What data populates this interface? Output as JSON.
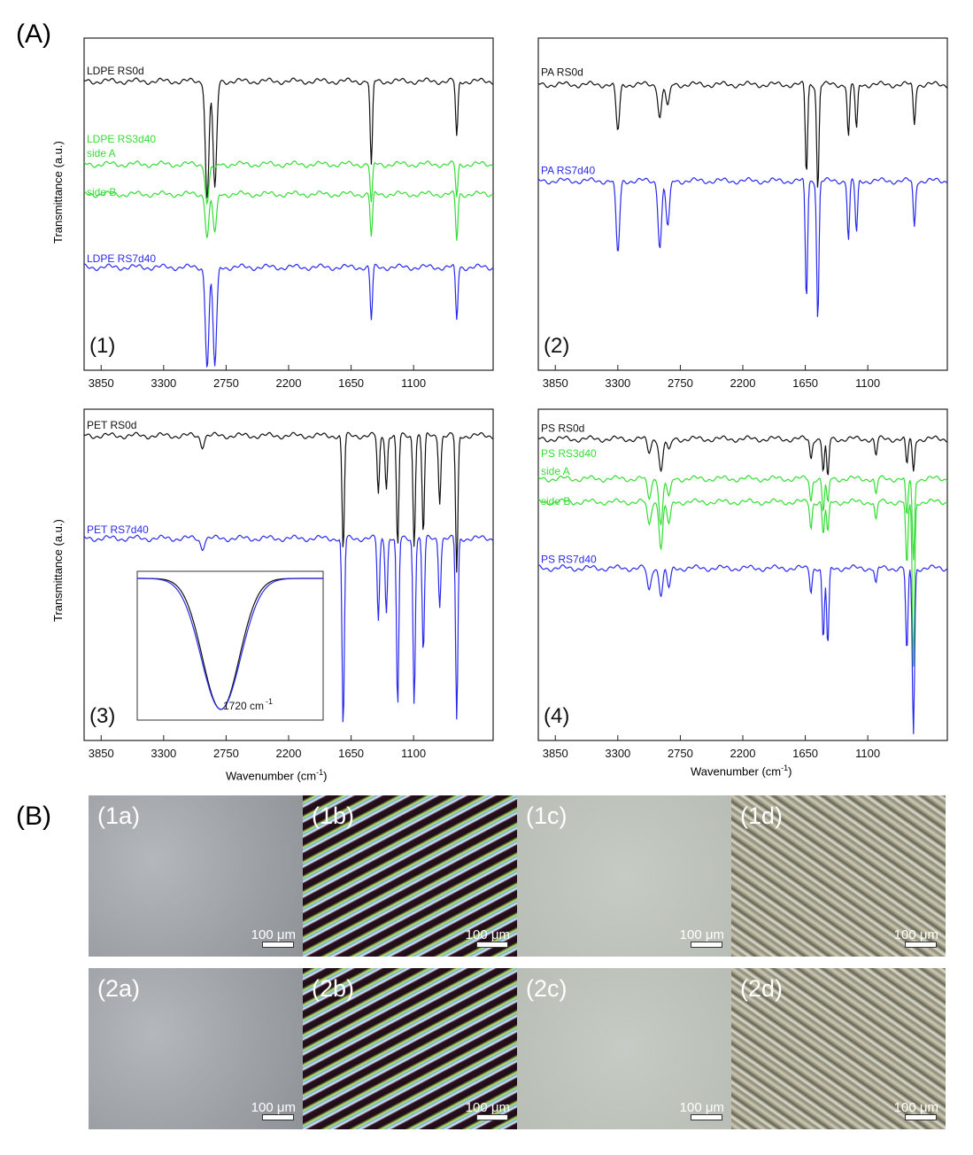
{
  "labels": {
    "section_a": "(A)",
    "section_b": "(B)"
  },
  "axes": {
    "y_title": "Transmittance (a.u.)",
    "x_title": "Wavenumber (cm",
    "x_title_sup": "-1",
    "x_title_end": ")"
  },
  "colors": {
    "black": "#111111",
    "green": "#33dd33",
    "blue": "#2a2aee"
  },
  "chart_data": [
    {
      "type": "line",
      "panel_label": "(1)",
      "xlabel": "",
      "ylabel": "Transmittance (a.u.)",
      "xlim": [
        4000,
        400
      ],
      "x_reversed": true,
      "xticks": [
        "3850",
        "3300",
        "2750",
        "2200",
        "1650",
        "1100"
      ],
      "series": [
        {
          "name": "LDPE RS0d",
          "color": "#111111",
          "baseline": 0.87,
          "x": [
            4000,
            2917,
            2849,
            1472,
            720
          ],
          "depth": [
            0,
            0.36,
            0.33,
            0.26,
            0.17
          ]
        },
        {
          "name": "LDPE RS3d40 side A",
          "color": "#33dd33",
          "baseline": 0.62,
          "x": [
            4000,
            2917,
            2849,
            1472,
            720
          ],
          "depth": [
            0,
            0.12,
            0.02,
            0.12,
            0.1
          ]
        },
        {
          "name": "side B",
          "color": "#33dd33",
          "baseline": 0.53,
          "x": [
            4000,
            2917,
            2849,
            1472,
            720
          ],
          "depth": [
            0,
            0.13,
            0.12,
            0.13,
            0.14
          ]
        },
        {
          "name": "LDPE RS7d40",
          "color": "#2a2aee",
          "baseline": 0.31,
          "x": [
            4000,
            2917,
            2849,
            1472,
            720
          ],
          "depth": [
            0,
            0.3,
            0.3,
            0.16,
            0.16
          ]
        }
      ],
      "annotations": [
        "LDPE RS0d",
        "LDPE RS3d40",
        "side A",
        "side B",
        "LDPE RS7d40"
      ]
    },
    {
      "type": "line",
      "panel_label": "(2)",
      "xlabel": "",
      "ylabel": "",
      "xlim": [
        4000,
        400
      ],
      "x_reversed": true,
      "xticks": [
        "3850",
        "3300",
        "2750",
        "2200",
        "1650",
        "1100"
      ],
      "series": [
        {
          "name": "PA RS0d",
          "color": "#111111",
          "baseline": 0.86,
          "x": [
            4000,
            3300,
            2930,
            2860,
            1640,
            1540,
            1270,
            1200,
            690
          ],
          "depth": [
            0,
            0.14,
            0.1,
            0.07,
            0.27,
            0.32,
            0.16,
            0.14,
            0.12
          ]
        },
        {
          "name": "PA RS7d40",
          "color": "#2a2aee",
          "baseline": 0.57,
          "x": [
            4000,
            3300,
            2930,
            2860,
            1640,
            1540,
            1270,
            1200,
            690
          ],
          "depth": [
            0,
            0.22,
            0.2,
            0.14,
            0.36,
            0.42,
            0.18,
            0.16,
            0.14
          ]
        }
      ],
      "annotations": [
        "PA RS0d",
        "PA RS7d40"
      ]
    },
    {
      "type": "line",
      "panel_label": "(3)",
      "xlabel": "Wavenumber (cm-1)",
      "ylabel": "Transmittance (a.u.)",
      "xlim": [
        4000,
        400
      ],
      "x_reversed": true,
      "xticks": [
        "3850",
        "3300",
        "2750",
        "2200",
        "1650",
        "1100"
      ],
      "series": [
        {
          "name": "PET RS0d",
          "color": "#111111",
          "baseline": 0.92,
          "x": [
            4000,
            2960,
            1720,
            1410,
            1340,
            1240,
            1095,
            1015,
            870,
            720
          ],
          "depth": [
            0,
            0.03,
            0.35,
            0.18,
            0.16,
            0.34,
            0.33,
            0.3,
            0.2,
            0.42
          ]
        },
        {
          "name": "PET RS7d40",
          "color": "#2a2aee",
          "baseline": 0.61,
          "x": [
            4000,
            2960,
            1720,
            1410,
            1340,
            1240,
            1095,
            1015,
            870,
            720
          ],
          "depth": [
            0,
            0.03,
            0.58,
            0.25,
            0.22,
            0.52,
            0.5,
            0.35,
            0.2,
            0.55
          ]
        }
      ],
      "annotations": [
        "PET RS0d",
        "PET RS7d40"
      ],
      "inset": {
        "label": "1720 cm",
        "label_sup": "-1"
      }
    },
    {
      "type": "line",
      "panel_label": "(4)",
      "xlabel": "Wavenumber (cm-1)",
      "ylabel": "",
      "xlim": [
        4000,
        400
      ],
      "x_reversed": true,
      "xticks": [
        "3850",
        "3300",
        "2750",
        "2200",
        "1650",
        "1100"
      ],
      "series": [
        {
          "name": "PS RS0d",
          "color": "#111111",
          "baseline": 0.91,
          "x": [
            4000,
            3025,
            2920,
            2850,
            1600,
            1492,
            1452,
            1028,
            756,
            698
          ],
          "depth": [
            0,
            0.04,
            0.1,
            0.04,
            0.06,
            0.1,
            0.12,
            0.05,
            0.08,
            0.1
          ]
        },
        {
          "name": "PS RS3d40 side A",
          "color": "#33dd33",
          "baseline": 0.79,
          "x": [
            4000,
            3025,
            2920,
            2850,
            1600,
            1492,
            1452,
            1028,
            756,
            698
          ],
          "depth": [
            0,
            0.06,
            0.14,
            0.06,
            0.07,
            0.1,
            0.08,
            0.05,
            0.12,
            0.25
          ]
        },
        {
          "name": "side B",
          "color": "#33dd33",
          "baseline": 0.72,
          "x": [
            4000,
            3025,
            2920,
            2850,
            1600,
            1492,
            1452,
            1028,
            756,
            698
          ],
          "depth": [
            0,
            0.07,
            0.14,
            0.07,
            0.08,
            0.1,
            0.1,
            0.06,
            0.2,
            0.5
          ]
        },
        {
          "name": "PS RS7d40",
          "color": "#2a2aee",
          "baseline": 0.52,
          "x": [
            4000,
            3025,
            2920,
            2850,
            1600,
            1492,
            1452,
            1028,
            756,
            698
          ],
          "depth": [
            0,
            0.07,
            0.08,
            0.06,
            0.07,
            0.22,
            0.24,
            0.05,
            0.26,
            0.5
          ]
        }
      ],
      "annotations": [
        "PS RS0d",
        "PS RS3d40",
        "side A",
        "side B",
        "PS RS7d40"
      ]
    }
  ],
  "micrographs": [
    {
      "label": "(1a)",
      "scale": "100 μm",
      "style": "gray"
    },
    {
      "label": "(1b)",
      "scale": "100 μm",
      "style": "fibers"
    },
    {
      "label": "(1c)",
      "scale": "100 μm",
      "style": "light"
    },
    {
      "label": "(1d)",
      "scale": "100 μm",
      "style": "crystal"
    },
    {
      "label": "(2a)",
      "scale": "100 μm",
      "style": "gray"
    },
    {
      "label": "(2b)",
      "scale": "100 μm",
      "style": "fibers"
    },
    {
      "label": "(2c)",
      "scale": "100 μm",
      "style": "light"
    },
    {
      "label": "(2d)",
      "scale": "100 μm",
      "style": "crystal"
    }
  ]
}
